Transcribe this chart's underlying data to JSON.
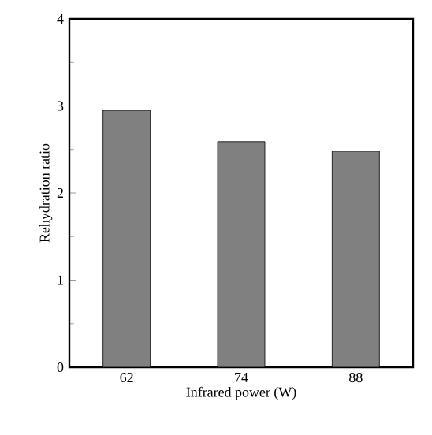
{
  "chart_data": {
    "type": "bar",
    "xlabel": "Infrared power (W)",
    "ylabel": "Rehydration ratio",
    "categories": [
      "62",
      "74",
      "88"
    ],
    "values": [
      2.95,
      2.59,
      2.48
    ],
    "color": "#808080",
    "ylim": [
      0,
      4
    ],
    "yticks": [
      0,
      1,
      2,
      3,
      4
    ]
  }
}
